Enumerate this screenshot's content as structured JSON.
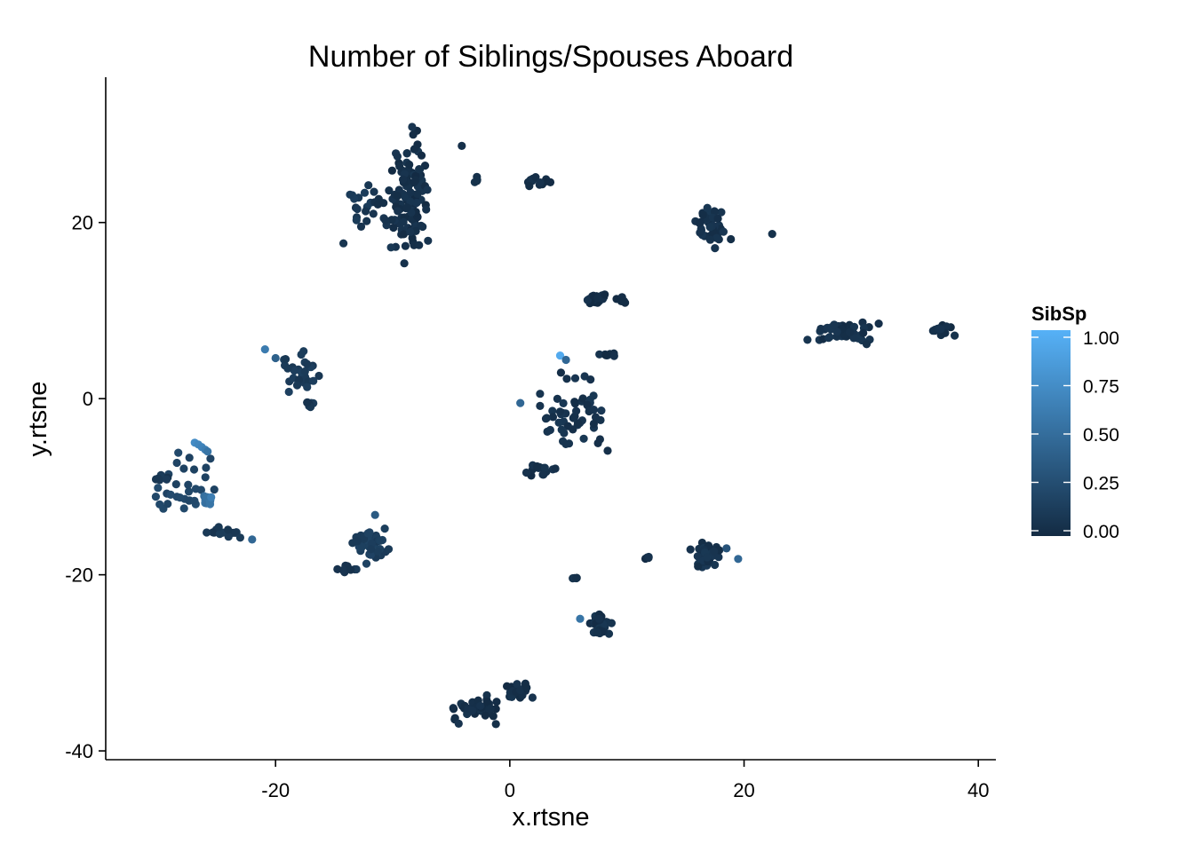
{
  "chart_data": {
    "type": "scatter",
    "title": "Number of Siblings/Spouses Aboard",
    "xlabel": "x.rtsne",
    "ylabel": "y.rtsne",
    "xlim": [
      -34.5,
      41.5
    ],
    "ylim": [
      -41,
      36.5
    ],
    "xticks": [
      -20,
      0,
      20,
      40
    ],
    "yticks": [
      -40,
      -20,
      0,
      20
    ],
    "grid": false,
    "color_scale": {
      "name": "SibSp",
      "domain": [
        0,
        1
      ],
      "low_color": "#132b43",
      "high_color": "#56b1f7",
      "ticks": [
        "0.00",
        "0.25",
        "0.50",
        "0.75",
        "1.00"
      ],
      "placement": "right"
    },
    "clusters": [
      {
        "cx": -8.5,
        "cy": 23,
        "sx": 1.2,
        "sy": 5.5,
        "n": 120,
        "v": 0.04
      },
      {
        "cx": -12,
        "cy": 21,
        "sx": 2,
        "sy": 3,
        "n": 20,
        "v": 0.1
      },
      {
        "cx": -11.3,
        "cy": 22.5,
        "sx": 1,
        "sy": 1.5,
        "n": 8,
        "v": 0.06
      },
      {
        "cx": 2.2,
        "cy": 24.6,
        "sx": 1.1,
        "sy": 0.5,
        "n": 14,
        "v": 0.03
      },
      {
        "cx": -2.8,
        "cy": 24.8,
        "sx": 0.2,
        "sy": 0.4,
        "n": 4,
        "v": 0.04
      },
      {
        "cx": 17.2,
        "cy": 19.5,
        "sx": 1.1,
        "sy": 1.6,
        "n": 45,
        "v": 0.06
      },
      {
        "cx": 7.5,
        "cy": 11.2,
        "sx": 0.8,
        "sy": 0.5,
        "n": 25,
        "v": 0.02
      },
      {
        "cx": 9.7,
        "cy": 11.2,
        "sx": 0.8,
        "sy": 0.3,
        "n": 5,
        "v": 0.03
      },
      {
        "cx": 28,
        "cy": 7.5,
        "sx": 2.4,
        "sy": 1.1,
        "n": 45,
        "v": 0.05
      },
      {
        "cx": 36.7,
        "cy": 7.8,
        "sx": 0.8,
        "sy": 0.6,
        "n": 16,
        "v": 0.04
      },
      {
        "cx": -18,
        "cy": 3,
        "sx": 1.3,
        "sy": 1.8,
        "n": 32,
        "v": 0.12
      },
      {
        "cx": -16.9,
        "cy": -0.6,
        "sx": 0.5,
        "sy": 0.5,
        "n": 8,
        "v": 0.1
      },
      {
        "cx": 5.5,
        "cy": -2,
        "sx": 2.2,
        "sy": 3.6,
        "n": 55,
        "v": 0.06
      },
      {
        "cx": 8.3,
        "cy": 5,
        "sx": 0.8,
        "sy": 0.2,
        "n": 8,
        "v": 0.04
      },
      {
        "cx": 3,
        "cy": -8.2,
        "sx": 1.5,
        "sy": 0.7,
        "n": 14,
        "v": 0.04
      },
      {
        "cx": -27.5,
        "cy": -10,
        "sx": 1.8,
        "sy": 2.6,
        "n": 30,
        "v": 0.2
      },
      {
        "cx": -29.8,
        "cy": -9,
        "sx": 0.8,
        "sy": 0.3,
        "n": 8,
        "v": 0.1
      },
      {
        "cx": -25.8,
        "cy": -11.6,
        "sx": 0.4,
        "sy": 0.5,
        "n": 10,
        "v": 0.52
      },
      {
        "cx": -24.2,
        "cy": -15,
        "sx": 1.4,
        "sy": 0.6,
        "n": 16,
        "v": 0.1
      },
      {
        "cx": -11.8,
        "cy": -16.5,
        "sx": 1.4,
        "sy": 1.9,
        "n": 45,
        "v": 0.14
      },
      {
        "cx": -13.8,
        "cy": -19.5,
        "sx": 0.8,
        "sy": 0.8,
        "n": 8,
        "v": 0.08
      },
      {
        "cx": 16.8,
        "cy": -17.8,
        "sx": 0.9,
        "sy": 1.3,
        "n": 50,
        "v": 0.06
      },
      {
        "cx": 7.8,
        "cy": -25.5,
        "sx": 0.8,
        "sy": 1,
        "n": 32,
        "v": 0.05
      },
      {
        "cx": 11.7,
        "cy": -18,
        "sx": 0.2,
        "sy": 0.3,
        "n": 4,
        "v": 0.04
      },
      {
        "cx": 5.5,
        "cy": -20.4,
        "sx": 0.4,
        "sy": 0.2,
        "n": 4,
        "v": 0.03
      },
      {
        "cx": -2.5,
        "cy": -35.4,
        "sx": 1.8,
        "sy": 1,
        "n": 40,
        "v": 0.03
      },
      {
        "cx": 0.6,
        "cy": -33.2,
        "sx": 1,
        "sy": 0.8,
        "n": 25,
        "v": 0.03
      }
    ],
    "singles": [
      {
        "x": -4.1,
        "y": 28.7,
        "v": 0.04
      },
      {
        "x": 22.4,
        "y": 18.7,
        "v": 0.05
      },
      {
        "x": -20.9,
        "y": 5.6,
        "v": 0.6
      },
      {
        "x": 4.3,
        "y": 4.9,
        "v": 0.95
      },
      {
        "x": 4.8,
        "y": 4.4,
        "v": 0.45
      },
      {
        "x": 0.9,
        "y": -0.5,
        "v": 0.45
      },
      {
        "x": -26.9,
        "y": -5.0,
        "v": 0.72
      },
      {
        "x": -26.6,
        "y": -5.2,
        "v": 0.68
      },
      {
        "x": -26.3,
        "y": -5.5,
        "v": 0.66
      },
      {
        "x": -26.0,
        "y": -5.8,
        "v": 0.62
      },
      {
        "x": -25.8,
        "y": -6.0,
        "v": 0.55
      },
      {
        "x": -25.5,
        "y": -11.2,
        "v": 0.62
      },
      {
        "x": 6.0,
        "y": -25.0,
        "v": 0.55
      },
      {
        "x": 19.5,
        "y": -18.2,
        "v": 0.45
      },
      {
        "x": 18.5,
        "y": -17.0,
        "v": 0.3
      },
      {
        "x": -22.0,
        "y": -16.0,
        "v": 0.45
      },
      {
        "x": -11.5,
        "y": -13.2,
        "v": 0.35
      },
      {
        "x": -20.0,
        "y": 4.6,
        "v": 0.4
      }
    ]
  }
}
